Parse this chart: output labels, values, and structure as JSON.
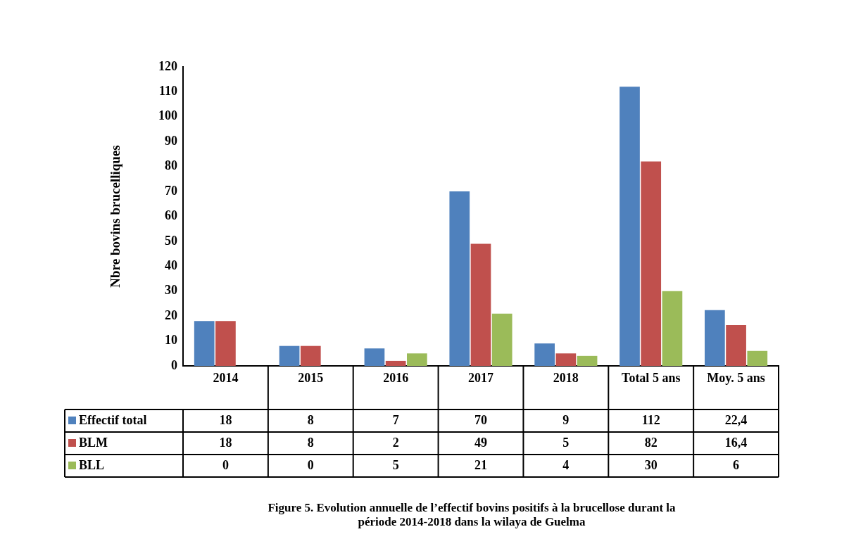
{
  "chart_data": {
    "type": "bar",
    "ylabel": "Nbre bovins brucelliques",
    "categories": [
      "2014",
      "2015",
      "2016",
      "2017",
      "2018",
      "Total 5 ans",
      "Moy. 5 ans"
    ],
    "series": [
      {
        "name": "Effectif total",
        "color": "#4f81bd",
        "values": [
          18,
          8,
          7,
          70,
          9,
          112,
          22.4
        ],
        "value_labels": [
          "18",
          "8",
          "7",
          "70",
          "9",
          "112",
          "22,4"
        ]
      },
      {
        "name": "BLM",
        "color": "#c0504d",
        "values": [
          18,
          8,
          2,
          49,
          5,
          82,
          16.4
        ],
        "value_labels": [
          "18",
          "8",
          "2",
          "49",
          "5",
          "82",
          "16,4"
        ]
      },
      {
        "name": "BLL",
        "color": "#9bbb59",
        "values": [
          0,
          0,
          5,
          21,
          4,
          30,
          6
        ],
        "value_labels": [
          "0",
          "0",
          "5",
          "21",
          "4",
          "30",
          "6"
        ]
      }
    ],
    "ylim": [
      0,
      120
    ],
    "yticks": [
      0,
      10,
      20,
      30,
      40,
      50,
      60,
      70,
      80,
      90,
      100,
      110,
      120
    ],
    "grid": false,
    "legend": "bottom",
    "annotations": [
      "Figure 5. Evolution annuelle de l’effectif bovins positifs à la brucellose durant la période 2014-2018 dans la wilaya de Guelma"
    ]
  }
}
